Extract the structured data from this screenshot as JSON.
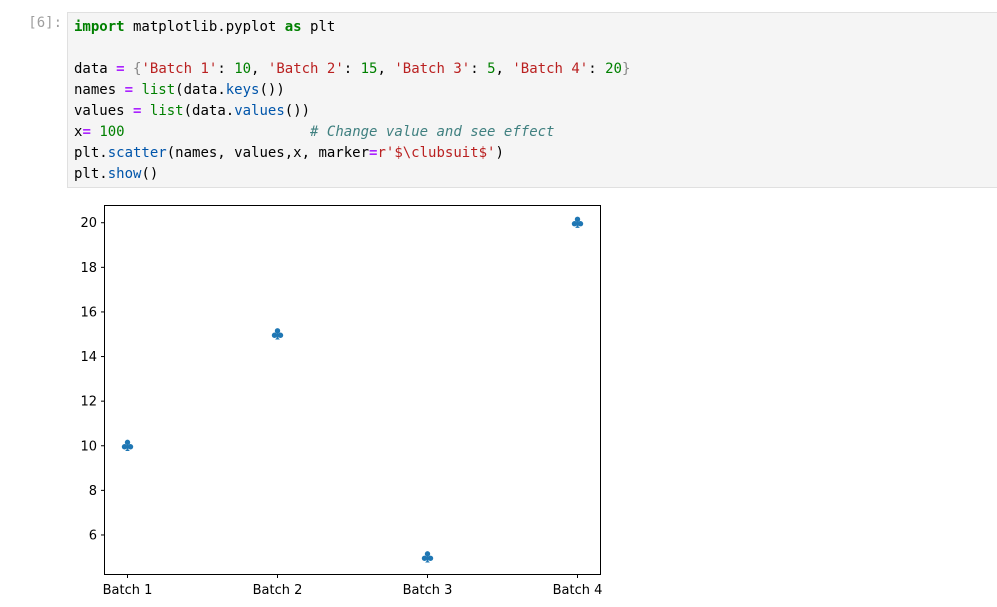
{
  "cell": {
    "prompt": "[6]:",
    "code": {
      "l1": {
        "kw1": "import",
        "mod": " matplotlib.pyplot ",
        "kw2": "as",
        "alias": " plt"
      },
      "l3": {
        "var": "data ",
        "eq": "=",
        "sp": " ",
        "lb": "{",
        "k1": "'Batch 1'",
        "c1": ": ",
        "v1": "10",
        "s1": ", ",
        "k2": "'Batch 2'",
        "c2": ": ",
        "v2": "15",
        "s2": ", ",
        "k3": "'Batch 3'",
        "c3": ": ",
        "v3": "5",
        "s3": ", ",
        "k4": "'Batch 4'",
        "c4": ": ",
        "v4": "20",
        "rb": "}"
      },
      "l4": {
        "var": "names ",
        "eq": "=",
        "sp": " ",
        "fn": "list",
        "p1": "(data.",
        "m": "keys",
        "p2": "())"
      },
      "l5": {
        "var": "values ",
        "eq": "=",
        "sp": " ",
        "fn": "list",
        "p1": "(data.",
        "m": "values",
        "p2": "())"
      },
      "l6": {
        "var": "x",
        "eq": "=",
        "sp": " ",
        "num": "100",
        "gap": "                      ",
        "comment": "# Change value and see effect"
      },
      "l7": {
        "obj": "plt.",
        "fn": "scatter",
        "args": "(names, values,x, marker",
        "eq": "=",
        "str": "r'$\\clubsuit$'",
        "end": ")"
      },
      "l8": {
        "obj": "plt.",
        "fn": "show",
        "end": "()"
      }
    }
  },
  "chart_data": {
    "type": "scatter",
    "marker": "club-suit",
    "marker_size": 100,
    "color": "#1f77b4",
    "categories": [
      "Batch 1",
      "Batch 2",
      "Batch 3",
      "Batch 4"
    ],
    "values": [
      10,
      15,
      5,
      20
    ],
    "ylim": [
      4.25,
      20.75
    ],
    "yticks": [
      6,
      8,
      10,
      12,
      14,
      16,
      18,
      20
    ],
    "grid": false,
    "title": "",
    "xlabel": "",
    "ylabel": ""
  }
}
